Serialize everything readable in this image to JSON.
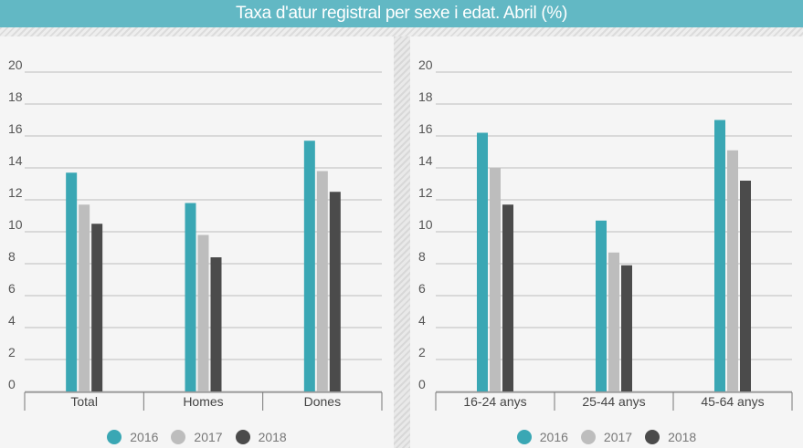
{
  "title": "Taxa d'atur registral per sexe i edat.  Abril (%)",
  "legend": [
    "2016",
    "2017",
    "2018"
  ],
  "colors": {
    "2016": "#3aa7b4",
    "2017": "#bdbdbd",
    "2018": "#4b4b4b"
  },
  "chart_data": [
    {
      "type": "bar",
      "categories": [
        "Total",
        "Homes",
        "Dones"
      ],
      "series": [
        {
          "name": "2016",
          "values": [
            13.7,
            11.8,
            15.7
          ]
        },
        {
          "name": "2017",
          "values": [
            11.7,
            9.8,
            13.8
          ]
        },
        {
          "name": "2018",
          "values": [
            10.5,
            8.4,
            12.5
          ]
        }
      ],
      "ylim": [
        0,
        20
      ],
      "yticks": [
        0,
        2,
        4,
        6,
        8,
        10,
        12,
        14,
        16,
        18,
        20
      ],
      "grid": true,
      "legend_position": "bottom"
    },
    {
      "type": "bar",
      "categories": [
        "16-24 anys",
        "25-44 anys",
        "45-64 anys"
      ],
      "series": [
        {
          "name": "2016",
          "values": [
            16.2,
            10.7,
            17.0
          ]
        },
        {
          "name": "2017",
          "values": [
            14.0,
            8.7,
            15.1
          ]
        },
        {
          "name": "2018",
          "values": [
            11.7,
            7.9,
            13.2
          ]
        }
      ],
      "ylim": [
        0,
        20
      ],
      "yticks": [
        0,
        2,
        4,
        6,
        8,
        10,
        12,
        14,
        16,
        18,
        20
      ],
      "grid": true,
      "legend_position": "bottom"
    }
  ]
}
